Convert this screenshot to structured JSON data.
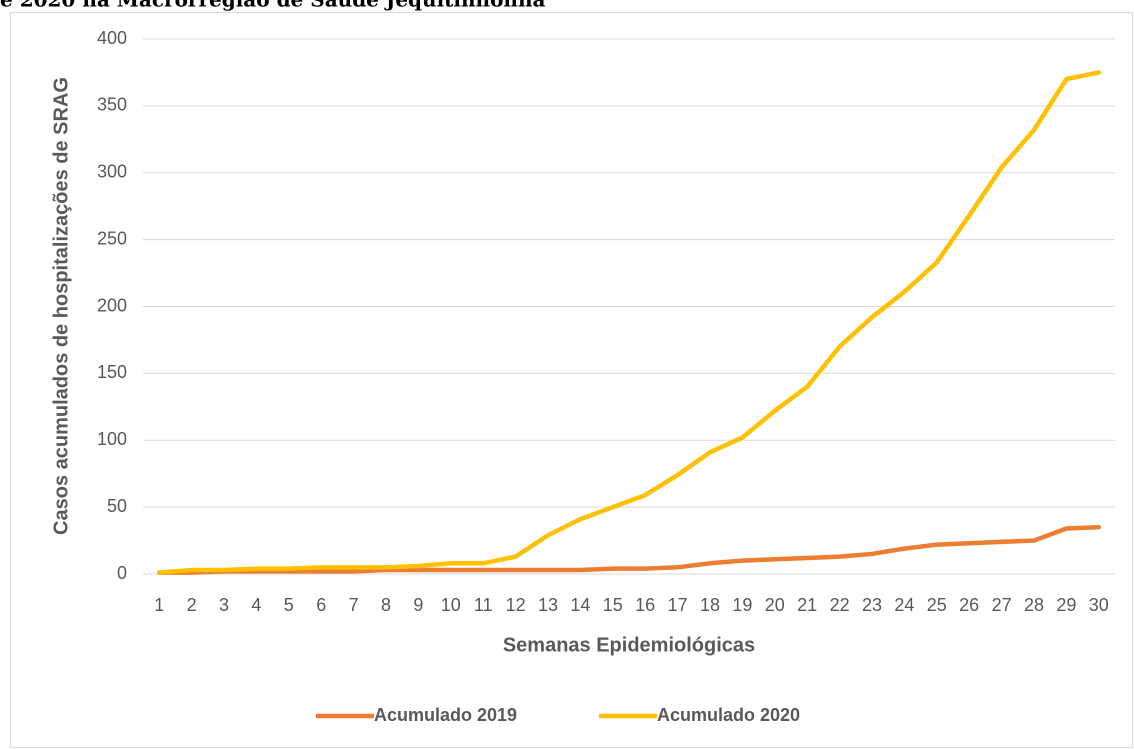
{
  "chart_data": {
    "type": "line",
    "title": "e 2020 na Macrorregião de Saúde Jequitinhonha",
    "x_label": "Semanas Epidemiológicas",
    "y_label": "Casos acumulados de hospitalizações de SRAG",
    "categories": [
      "1",
      "2",
      "3",
      "4",
      "5",
      "6",
      "7",
      "8",
      "9",
      "10",
      "11",
      "12",
      "13",
      "14",
      "15",
      "16",
      "17",
      "18",
      "19",
      "20",
      "21",
      "22",
      "23",
      "24",
      "25",
      "26",
      "27",
      "28",
      "29",
      "30"
    ],
    "series": [
      {
        "name": "Acumulado 2019",
        "color": "#ed7d31",
        "values": [
          1,
          1,
          2,
          2,
          2,
          2,
          2,
          3,
          3,
          3,
          3,
          3,
          3,
          3,
          4,
          4,
          5,
          8,
          10,
          11,
          12,
          13,
          15,
          19,
          22,
          23,
          24,
          25,
          34,
          35
        ]
      },
      {
        "name": "Acumulado 2020",
        "color": "#ffc000",
        "values": [
          1,
          3,
          3,
          4,
          4,
          5,
          5,
          5,
          6,
          8,
          8,
          13,
          29,
          41,
          50,
          59,
          74,
          91,
          102,
          122,
          140,
          170,
          192,
          211,
          233,
          268,
          304,
          332,
          370,
          375
        ]
      }
    ],
    "ylim": [
      0,
      400
    ],
    "yticks": [
      0,
      50,
      100,
      150,
      200,
      250,
      300,
      350,
      400
    ],
    "grid": true,
    "legend": "bottom"
  }
}
